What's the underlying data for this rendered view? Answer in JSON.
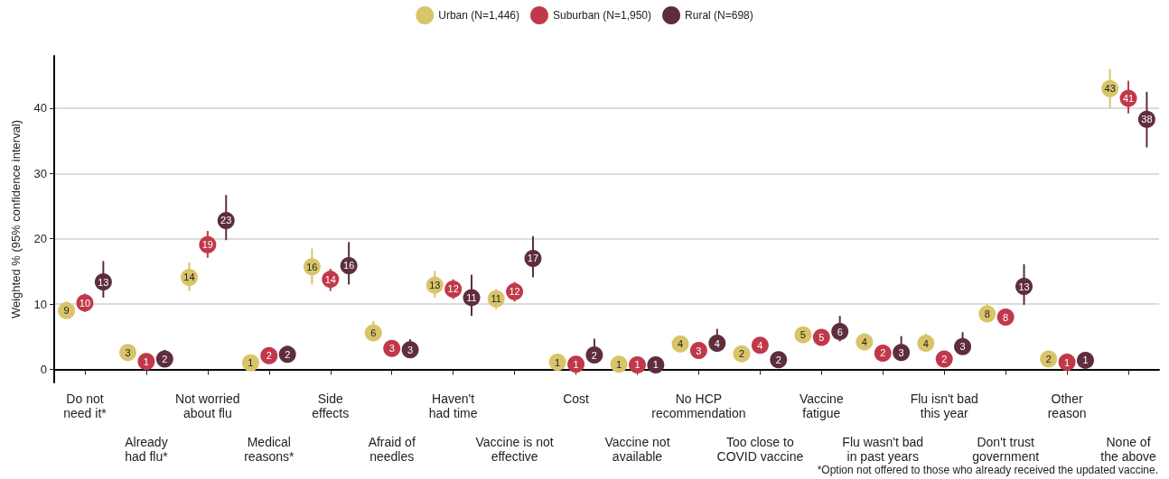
{
  "chart_data": {
    "type": "scatter",
    "ylabel": "Weighted % (95% confidence interval)",
    "categories": [
      "Do not\nneed it*",
      "Already\nhad flu*",
      "Not worried\nabout flu",
      "Medical\nreasons*",
      "Side\neffects",
      "Afraid of\nneedles",
      "Haven't\nhad time",
      "Vaccine is not\neffective",
      "Cost",
      "Vaccine not\navailable",
      "No HCP\nrecommendation",
      "Too close to\nCOVID vaccine",
      "Vaccine\nfatigue",
      "Flu wasn't bad\nin past years",
      "Flu isn't bad\nthis year",
      "Don't trust\ngovernment",
      "Other\nreason",
      "None of\nthe above"
    ],
    "series": [
      {
        "name": "Urban (N=1,446)",
        "color": "#d9c46a",
        "values": [
          9.0,
          2.6,
          14.1,
          1.0,
          15.7,
          5.6,
          12.9,
          10.8,
          1.1,
          0.8,
          3.9,
          2.4,
          5.3,
          4.2,
          4.0,
          8.5,
          1.6,
          43.0
        ],
        "value_labels": [
          "9",
          "3",
          "14",
          "1",
          "16",
          "6",
          "13",
          "11",
          "1",
          "1",
          "4",
          "2",
          "5",
          "4",
          "4",
          "8",
          "2",
          "43"
        ],
        "errors": [
          [
            7.8,
            10.4
          ],
          [
            1.8,
            3.5
          ],
          [
            12.0,
            16.4
          ],
          [
            0.5,
            1.6
          ],
          [
            13.0,
            18.5
          ],
          [
            4.4,
            7.4
          ],
          [
            11.0,
            15.1
          ],
          [
            9.2,
            12.3
          ],
          [
            0.5,
            1.8
          ],
          [
            0.3,
            1.7
          ],
          [
            3.0,
            5.0
          ],
          [
            1.6,
            3.3
          ],
          [
            4.2,
            6.5
          ],
          [
            3.2,
            5.5
          ],
          [
            3.0,
            5.5
          ],
          [
            7.3,
            10.0
          ],
          [
            1.0,
            2.3
          ],
          [
            40.0,
            46.0
          ]
        ]
      },
      {
        "name": "Suburban (N=1,950)",
        "color": "#c0394a",
        "values": [
          10.2,
          1.2,
          19.1,
          2.1,
          13.8,
          3.2,
          12.3,
          11.9,
          0.8,
          0.7,
          2.9,
          3.7,
          4.9,
          2.5,
          1.6,
          8.0,
          1.1,
          41.5
        ],
        "value_labels": [
          "10",
          "1",
          "19",
          "2",
          "14",
          "3",
          "12",
          "12",
          "1",
          "1",
          "3",
          "4",
          "5",
          "2",
          "2",
          "8",
          "1",
          "41"
        ],
        "errors": [
          [
            8.8,
            11.6
          ],
          [
            0.6,
            1.8
          ],
          [
            17.1,
            21.2
          ],
          [
            1.4,
            2.9
          ],
          [
            12.0,
            15.4
          ],
          [
            2.4,
            4.2
          ],
          [
            10.8,
            13.8
          ],
          [
            10.4,
            13.4
          ],
          [
            0.4,
            1.5
          ],
          [
            0.3,
            1.3
          ],
          [
            2.1,
            3.9
          ],
          [
            2.8,
            4.7
          ],
          [
            3.9,
            6.1
          ],
          [
            1.7,
            3.3
          ],
          [
            1.0,
            2.4
          ],
          [
            6.9,
            9.2
          ],
          [
            0.6,
            1.6
          ],
          [
            39.2,
            44.2
          ]
        ]
      },
      {
        "name": "Rural (N=698)",
        "color": "#5e2d3e",
        "values": [
          13.4,
          1.6,
          22.8,
          2.3,
          15.9,
          3.0,
          11.0,
          17.0,
          2.2,
          0.7,
          4.0,
          1.5,
          5.8,
          2.6,
          3.5,
          12.7,
          1.4,
          38.3
        ],
        "value_labels": [
          "13",
          "2",
          "23",
          "2",
          "16",
          "3",
          "11",
          "17",
          "2",
          "1",
          "4",
          "2",
          "6",
          "3",
          "3",
          "13",
          "1",
          "38"
        ],
        "errors": [
          [
            11.0,
            16.6
          ],
          [
            0.7,
            3.0
          ],
          [
            19.8,
            26.7
          ],
          [
            1.5,
            3.3
          ],
          [
            13.0,
            19.5
          ],
          [
            2.1,
            4.6
          ],
          [
            8.2,
            14.5
          ],
          [
            14.1,
            20.4
          ],
          [
            1.0,
            4.7
          ],
          [
            0.3,
            1.4
          ],
          [
            2.8,
            6.2
          ],
          [
            0.8,
            2.5
          ],
          [
            4.3,
            8.2
          ],
          [
            1.6,
            5.1
          ],
          [
            2.3,
            5.7
          ],
          [
            9.9,
            16.1
          ],
          [
            0.8,
            2.2
          ],
          [
            34.0,
            42.5
          ]
        ]
      }
    ],
    "ylim": [
      -2,
      48
    ],
    "yticks": [
      0,
      10,
      20,
      30,
      40
    ],
    "grid": "y",
    "legend": "top",
    "marker": "circle",
    "annotations": [
      "*Option not offered to those who already received the updated vaccine."
    ]
  }
}
